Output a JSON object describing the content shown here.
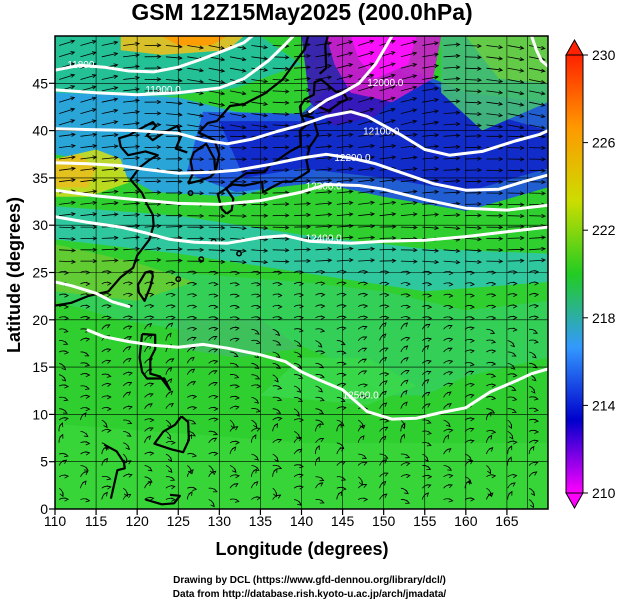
{
  "chart_data": {
    "type": "heatmap",
    "title": "GSM 12Z15May2025 (200.0hPa)",
    "xlabel": "Longitude (degrees)",
    "ylabel": "Latitude  (degrees)",
    "xlim": [
      110,
      170
    ],
    "ylim": [
      0,
      50
    ],
    "x_ticks": [
      110,
      115,
      120,
      125,
      130,
      135,
      140,
      145,
      150,
      155,
      160,
      165
    ],
    "y_ticks": [
      0,
      5,
      10,
      15,
      20,
      25,
      30,
      35,
      40,
      45
    ],
    "grid": true,
    "colorbar": {
      "range": [
        210,
        230
      ],
      "ticks": [
        210,
        214,
        218,
        222,
        226,
        230
      ],
      "colors": [
        "#ff00ff",
        "#0000cc",
        "#3399ff",
        "#22cc22",
        "#ccdd00",
        "#ff9900",
        "#ff2200"
      ]
    },
    "contours": [
      {
        "label": "11800",
        "points": [
          [
            110,
            46.4
          ],
          [
            113,
            46.9
          ],
          [
            116,
            46.7
          ],
          [
            119,
            46.3
          ],
          [
            122,
            46.2
          ],
          [
            125,
            46.7
          ],
          [
            128,
            47.6
          ],
          [
            131,
            48.6
          ],
          [
            133,
            49.3
          ],
          [
            134,
            50
          ]
        ]
      },
      {
        "label": "11900.0",
        "points": [
          [
            110,
            44.3
          ],
          [
            115,
            44.0
          ],
          [
            120,
            43.8
          ],
          [
            125,
            44.0
          ],
          [
            130,
            44.5
          ],
          [
            133,
            45.5
          ],
          [
            136,
            47.4
          ],
          [
            138,
            49.1
          ],
          [
            139,
            50
          ]
        ]
      },
      {
        "label": "12000.0",
        "points": [
          [
            141,
            42.0
          ],
          [
            143,
            43.2
          ],
          [
            145,
            44.0
          ],
          [
            147,
            45.0
          ],
          [
            149,
            47.0
          ],
          [
            150,
            48.5
          ],
          [
            151,
            50
          ]
        ]
      },
      {
        "label": "12100.0",
        "points": [
          [
            110,
            40.2
          ],
          [
            115,
            40.1
          ],
          [
            120,
            40.0
          ],
          [
            125,
            39.7
          ],
          [
            128,
            39.0
          ],
          [
            131,
            38.6
          ],
          [
            134,
            39.1
          ],
          [
            137,
            39.9
          ],
          [
            140,
            40.6
          ],
          [
            143,
            41.5
          ],
          [
            146,
            42.0
          ],
          [
            148,
            41.5
          ],
          [
            152,
            39.6
          ],
          [
            155,
            38.0
          ],
          [
            158,
            37.4
          ],
          [
            162,
            37.8
          ],
          [
            166,
            38.9
          ],
          [
            169,
            39.6
          ],
          [
            170,
            40
          ]
        ]
      },
      {
        "label": "12200.0",
        "points": [
          [
            110,
            36.6
          ],
          [
            114,
            36.5
          ],
          [
            118,
            36.3
          ],
          [
            121,
            35.9
          ],
          [
            125,
            35.5
          ],
          [
            129,
            35.6
          ],
          [
            132,
            35.8
          ],
          [
            136,
            36.4
          ],
          [
            140,
            37.1
          ],
          [
            143,
            37.5
          ],
          [
            146,
            37.1
          ],
          [
            149,
            36.5
          ],
          [
            152,
            35.6
          ],
          [
            156,
            34.4
          ],
          [
            160,
            33.7
          ],
          [
            164,
            33.8
          ],
          [
            167,
            34.6
          ],
          [
            170,
            35.3
          ]
        ]
      },
      {
        "label": "12300.0",
        "points": [
          [
            110,
            33.7
          ],
          [
            115,
            33.1
          ],
          [
            120,
            32.7
          ],
          [
            125,
            32.3
          ],
          [
            130,
            32.2
          ],
          [
            135,
            32.6
          ],
          [
            140,
            33.5
          ],
          [
            143,
            34.3
          ],
          [
            147,
            34.2
          ],
          [
            150,
            33.8
          ],
          [
            155,
            32.7
          ],
          [
            160,
            31.8
          ],
          [
            165,
            31.6
          ],
          [
            170,
            32.1
          ]
        ]
      },
      {
        "label": "12400.0",
        "points": [
          [
            110,
            30.9
          ],
          [
            114,
            30.3
          ],
          [
            118,
            29.8
          ],
          [
            121,
            29.2
          ],
          [
            124,
            28.5
          ],
          [
            127,
            28.2
          ],
          [
            131,
            28.1
          ],
          [
            135,
            28.7
          ],
          [
            138,
            28.9
          ],
          [
            141,
            28.3
          ],
          [
            146,
            28.1
          ],
          [
            150,
            28.3
          ],
          [
            155,
            28.4
          ],
          [
            160,
            28.8
          ],
          [
            165,
            29.3
          ],
          [
            170,
            29.8
          ]
        ]
      },
      {
        "label": "",
        "points": [
          [
            114,
            18.9
          ],
          [
            116,
            18.2
          ],
          [
            119,
            17.7
          ],
          [
            122,
            17.3
          ],
          [
            125,
            17.1
          ],
          [
            128,
            17.4
          ],
          [
            131,
            17.0
          ],
          [
            135,
            16.3
          ],
          [
            138,
            15.6
          ],
          [
            140,
            14.5
          ],
          [
            142,
            13.7
          ],
          [
            145,
            12.6
          ],
          [
            148,
            10.3
          ],
          [
            151,
            9.5
          ],
          [
            154,
            9.6
          ],
          [
            157,
            10.2
          ],
          [
            160,
            10.7
          ],
          [
            163,
            12.4
          ],
          [
            166,
            13.5
          ],
          [
            168,
            14.3
          ],
          [
            170,
            14.8
          ]
        ]
      },
      {
        "label": "",
        "points": [
          [
            110,
            24.0
          ],
          [
            112,
            23.6
          ],
          [
            115,
            22.8
          ],
          [
            117,
            21.9
          ],
          [
            119,
            21.4
          ]
        ]
      },
      {
        "label": "",
        "points": [
          [
            168,
            50
          ],
          [
            168.6,
            48.5
          ],
          [
            169.2,
            47.4
          ],
          [
            170,
            46.8
          ]
        ]
      }
    ],
    "contour_label_positions": [
      {
        "label": "11800",
        "x": 111.5,
        "y": 46.6
      },
      {
        "label": "11900.0",
        "x": 121.0,
        "y": 44.0
      },
      {
        "label": "12000.0",
        "x": 148.0,
        "y": 44.7
      },
      {
        "label": "12100.0",
        "x": 147.5,
        "y": 39.6
      },
      {
        "label": "12200.0",
        "x": 144.0,
        "y": 36.8
      },
      {
        "label": "12300.0",
        "x": 140.5,
        "y": 33.8
      },
      {
        "label": "12400.0",
        "x": 140.5,
        "y": 28.3
      },
      {
        "label": "12500.0",
        "x": 145.0,
        "y": 11.7
      }
    ]
  }
}
